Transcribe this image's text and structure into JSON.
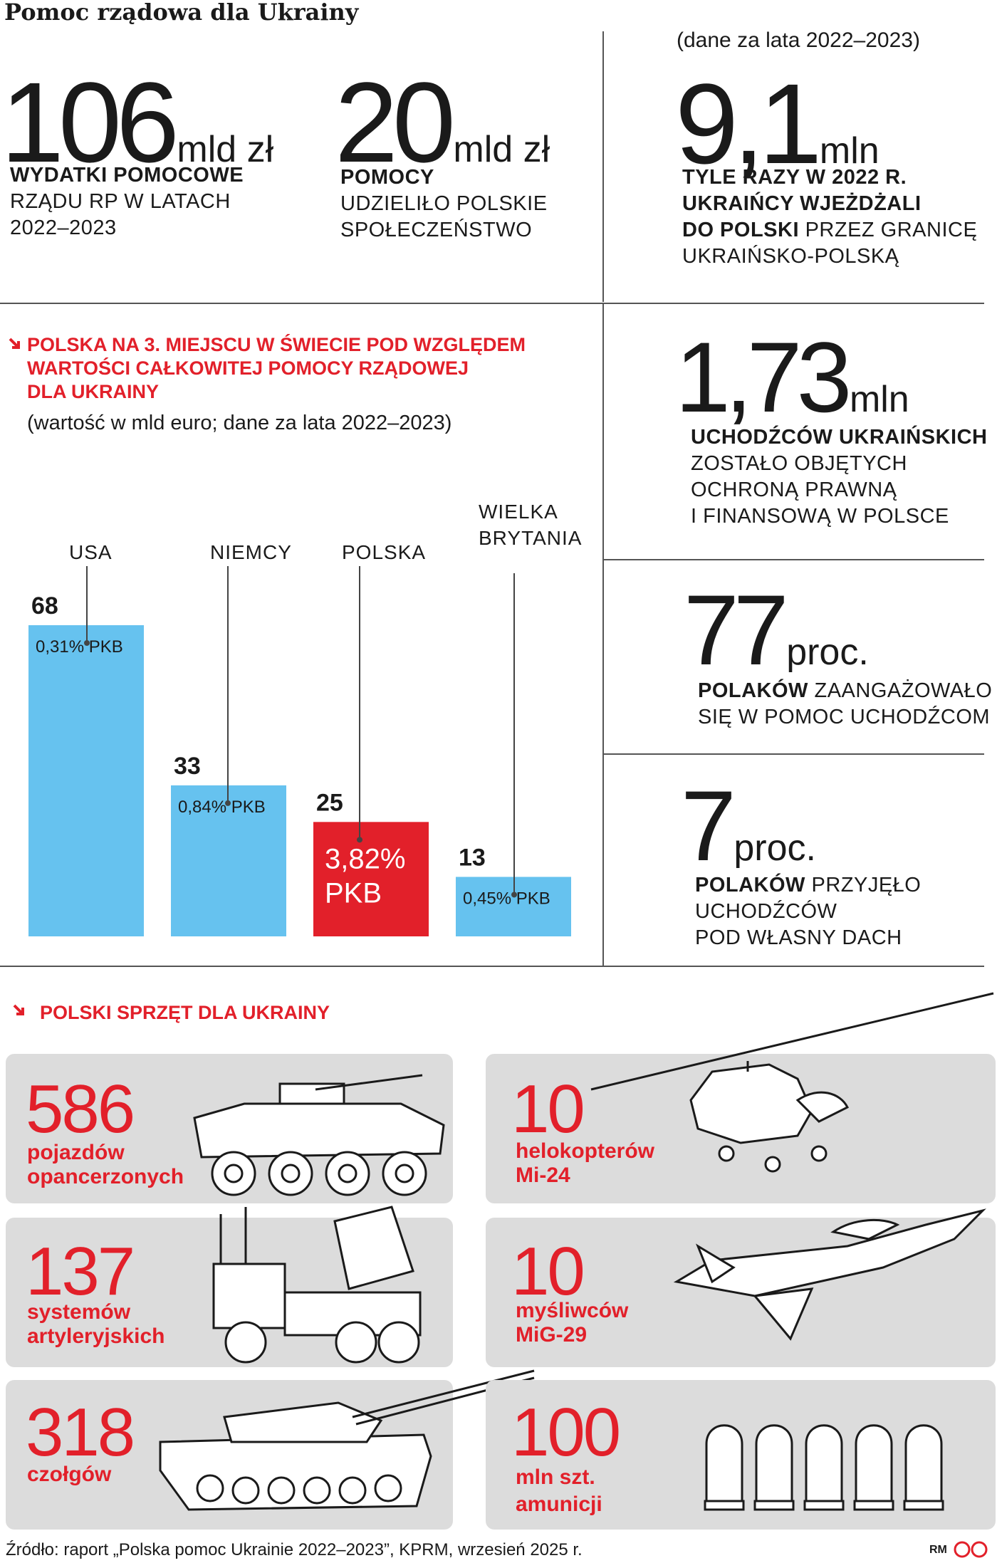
{
  "title": "Pomoc rządowa dla Ukrainy",
  "top_note": "(dane za lata 2022–2023)",
  "stats": {
    "spending": {
      "number": "106",
      "unit": "mld zł",
      "bold": "WYDATKI POMOCOWE",
      "rest": "RZĄDU RP W LATACH 2022–2023"
    },
    "society": {
      "number": "20",
      "unit": "mld zł",
      "bold": "POMOCY",
      "rest": "UDZIELIŁO POLSKIE SPOŁECZEŃSTWO"
    },
    "crossings": {
      "number": "9,1",
      "unit": "mln",
      "line1": "TYLE RAZY W 2022 R.",
      "line2": "UKRAIŃCY WJEŻDŻALI",
      "line3_bold": "DO POLSKI",
      "line3_rest": " PRZEZ GRANICĘ",
      "line4": "UKRAIŃSKO-POLSKĄ"
    },
    "refugees": {
      "number": "1,73",
      "unit": "mln",
      "bold": "UCHODŹCÓW UKRAIŃSKICH",
      "line2": "ZOSTAŁO OBJĘTYCH",
      "line3": "OCHRONĄ PRAWNĄ",
      "line4": "I FINANSOWĄ W POLSCE"
    },
    "engaged": {
      "number": "77",
      "unit": "proc.",
      "bold": "POLAKÓW",
      "rest1": " ZAANGAŻOWAŁO",
      "line2": "SIĘ W POMOC UCHODŹCOM"
    },
    "hosted": {
      "number": "7",
      "unit": "proc.",
      "bold": "POLAKÓW",
      "rest1": " PRZYJĘŁO",
      "line2": "UCHODŹCÓW",
      "line3": "POD WŁASNY DACH"
    }
  },
  "chart_heading": {
    "line1": "POLSKA NA 3. MIEJSCU W ŚWIECIE POD WZGLĘDEM",
    "line2": "WARTOŚCI CAŁKOWITEJ POMOCY RZĄDOWEJ",
    "line3": "DLA UKRAINY",
    "note": "(wartość w mld euro; dane za lata 2022–2023)"
  },
  "chart_data": {
    "type": "bar",
    "title": "POLSKA NA 3. MIEJSCU W ŚWIECIE POD WZGLĘDEM WARTOŚCI CAŁKOWITEJ POMOCY RZĄDOWEJ DLA UKRAINY",
    "subtitle": "(wartość w mld euro; dane za lata 2022–2023)",
    "categories": [
      "USA",
      "NIEMCY",
      "POLSKA",
      "WIELKA BRYTANIA"
    ],
    "values": [
      68,
      33,
      25,
      13
    ],
    "value_labels": [
      "68",
      "33",
      "25",
      "13"
    ],
    "gdp_share": [
      "0,31% PKB",
      "0,84% PKB",
      "3,82% PKB",
      "0,45% PKB"
    ],
    "colors": [
      "#66c2ef",
      "#66c2ef",
      "#e2202a",
      "#66c2ef"
    ],
    "xlabel": "",
    "ylabel": "",
    "ylim": [
      0,
      68
    ],
    "grid": false,
    "legend": "none"
  },
  "equipment_heading": "POLSKI SPRZĘT DLA UKRAINY",
  "equipment": [
    {
      "number": "586",
      "line1": "pojazdów",
      "line2": "opancerzonych",
      "icon": "armored-vehicle-icon"
    },
    {
      "number": "10",
      "line1": "helokopterów",
      "line2": "Mi-24",
      "icon": "helicopter-icon"
    },
    {
      "number": "137",
      "line1": "systemów",
      "line2": "artyleryjskich",
      "icon": "rocket-launcher-icon"
    },
    {
      "number": "10",
      "line1": "myśliwców",
      "line2": "MiG-29",
      "icon": "fighter-jet-icon"
    },
    {
      "number": "318",
      "line1": "czołgów",
      "line2": "",
      "icon": "tank-icon"
    },
    {
      "number": "100",
      "line1": "mln szt.",
      "line2": "amunicji",
      "icon": "ammunition-icon"
    }
  ],
  "source": "Źródło: raport „Polska pomoc Ukrainie 2022–2023”, KPRM, wrzesień 2025 r.",
  "credit": "RM",
  "colors": {
    "accent": "#e2202a",
    "bar": "#66c2ef",
    "card": "#dcdcdc"
  }
}
